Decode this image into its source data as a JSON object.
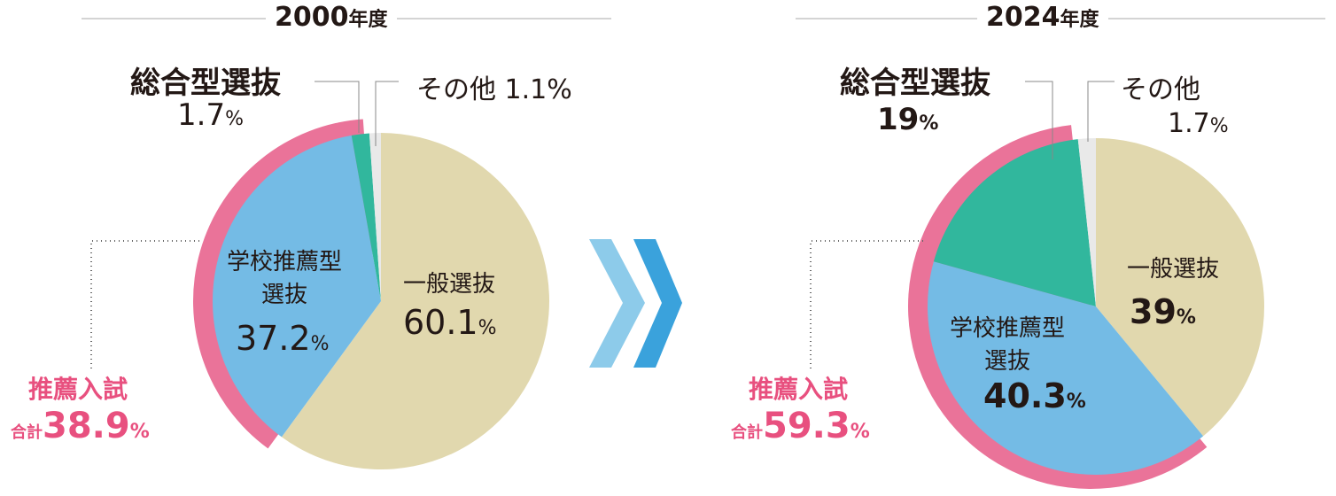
{
  "chart_data": [
    {
      "type": "pie",
      "title": "2000",
      "title_unit": "年度",
      "slices": [
        {
          "label": "一般選抜",
          "value": 60.1,
          "color": "#e1d8ae"
        },
        {
          "label": "学校推薦型選抜",
          "label_lines": [
            "学校推薦型",
            "選抜"
          ],
          "value": 37.2,
          "color": "#74bbe5"
        },
        {
          "label": "総合型選抜",
          "value": 1.7,
          "color": "#31b79d"
        },
        {
          "label": "その他",
          "value": 1.1,
          "color": "#e9e9e9"
        }
      ],
      "group": {
        "label": "推薦入試",
        "sub_label": "合計",
        "value": 38.9,
        "color": "#ea7399"
      },
      "unit": "%"
    },
    {
      "type": "pie",
      "title": "2024",
      "title_unit": "年度",
      "slices": [
        {
          "label": "一般選抜",
          "value": 39.0,
          "color": "#e1d8ae"
        },
        {
          "label": "学校推薦型選抜",
          "label_lines": [
            "学校推薦型",
            "選抜"
          ],
          "value": 40.3,
          "color": "#74bbe5"
        },
        {
          "label": "総合型選抜",
          "value": 19.0,
          "color": "#31b79d"
        },
        {
          "label": "その他",
          "value": 1.7,
          "color": "#e9e9e9"
        }
      ],
      "group": {
        "label": "推薦入試",
        "sub_label": "合計",
        "value": 59.3,
        "color": "#ea7399"
      },
      "unit": "%"
    }
  ],
  "arrow_colors": [
    "#8dcbea",
    "#3aa2dc"
  ]
}
